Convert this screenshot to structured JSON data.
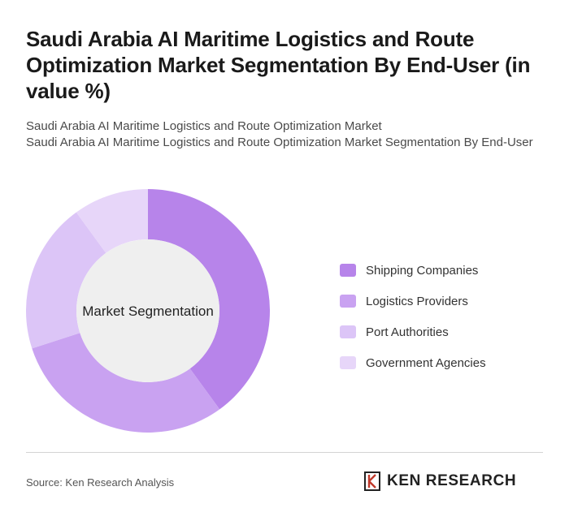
{
  "header": {
    "title": "Saudi Arabia AI Maritime Logistics and Route Optimization Market Segmentation By End-User (in value %)",
    "subtitle_line1": "Saudi Arabia AI Maritime Logistics and Route Optimization Market",
    "subtitle_line2": "Saudi Arabia AI Maritime Logistics and Route Optimization Market Segmentation By End-User"
  },
  "chart_data": {
    "type": "pie",
    "variant": "donut",
    "center_label": "Market Segmentation",
    "categories": [
      "Shipping Companies",
      "Logistics Providers",
      "Port Authorities",
      "Government Agencies"
    ],
    "values": [
      40,
      30,
      20,
      10
    ],
    "colors": [
      "#b784ea",
      "#c9a2f1",
      "#dcc5f7",
      "#e7d6f9"
    ],
    "legend_position": "right"
  },
  "footer": {
    "source": "Source: Ken Research Analysis",
    "brand": "KEN RESEARCH"
  }
}
